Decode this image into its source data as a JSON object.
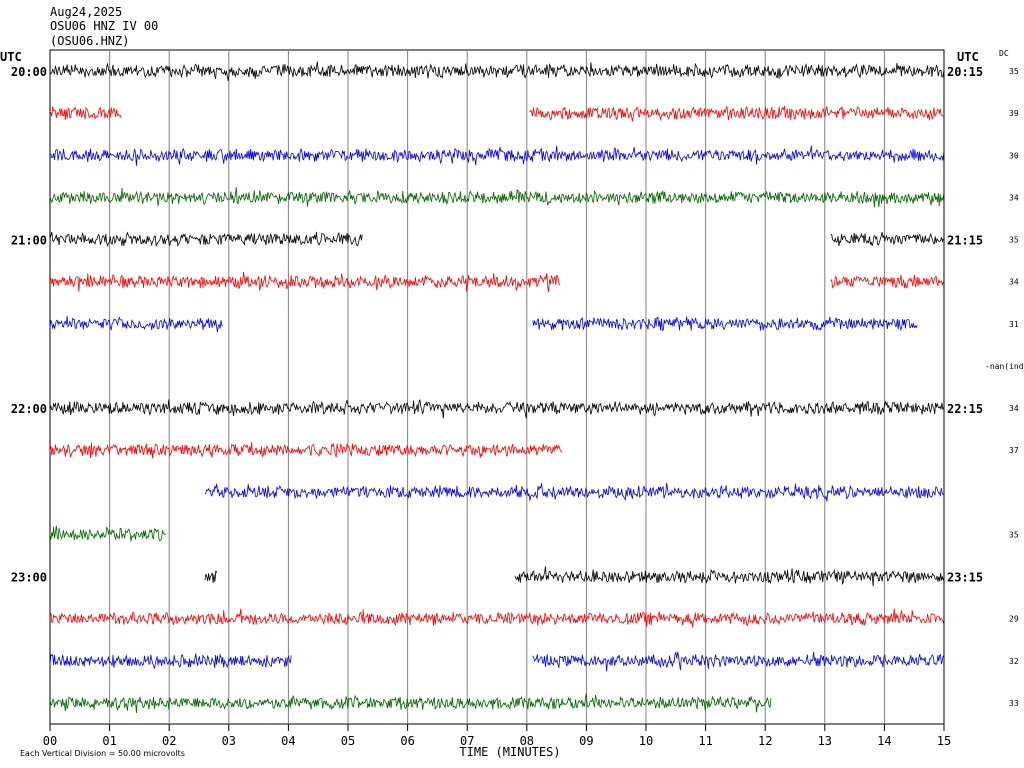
{
  "header": {
    "date": "Aug24,2025",
    "station": "OSU06 HNZ IV 00",
    "channel": "(OSU06.HNZ)"
  },
  "chart_data": {
    "type": "line",
    "xlabel": "TIME (MINUTES)",
    "x_ticks": [
      "00",
      "01",
      "02",
      "03",
      "04",
      "05",
      "06",
      "07",
      "08",
      "09",
      "10",
      "11",
      "12",
      "13",
      "14",
      "15"
    ],
    "xlim": [
      0,
      15
    ],
    "left_axis_label": "UTC",
    "right_axis_label": "UTC",
    "dc_label": "DC",
    "colors": [
      "#000000",
      "#ff0000",
      "#0000ff",
      "#006400"
    ],
    "hour_labels": [
      {
        "row": 0,
        "left": "20:00",
        "right": "20:15"
      },
      {
        "row": 4,
        "left": "21:00",
        "right": "21:15"
      },
      {
        "row": 8,
        "left": "22:00",
        "right": "22:15"
      },
      {
        "row": 12,
        "left": "23:00",
        "right": "23:15"
      }
    ],
    "traces": [
      {
        "row": 0,
        "color": "#000000",
        "dc": "35",
        "segments": [
          [
            0,
            15
          ]
        ]
      },
      {
        "row": 1,
        "color": "#ff0000",
        "dc": "39",
        "segments": [
          [
            0,
            1.2
          ],
          [
            8.05,
            15
          ]
        ]
      },
      {
        "row": 2,
        "color": "#0000ff",
        "dc": "30",
        "segments": [
          [
            0,
            15
          ]
        ]
      },
      {
        "row": 3,
        "color": "#006400",
        "dc": "34",
        "segments": [
          [
            0,
            15
          ]
        ]
      },
      {
        "row": 4,
        "color": "#000000",
        "dc": "35",
        "segments": [
          [
            0,
            5.25
          ],
          [
            13.1,
            15
          ]
        ]
      },
      {
        "row": 5,
        "color": "#ff0000",
        "dc": "34",
        "segments": [
          [
            0,
            8.55
          ],
          [
            13.1,
            15
          ]
        ]
      },
      {
        "row": 6,
        "color": "#0000ff",
        "dc": "31",
        "segments": [
          [
            0,
            2.9
          ],
          [
            8.1,
            14.55
          ]
        ]
      },
      {
        "row": 7,
        "color": "#006400",
        "dc": "-nan(ind",
        "segments": []
      },
      {
        "row": 8,
        "color": "#000000",
        "dc": "34",
        "segments": [
          [
            0,
            15
          ]
        ]
      },
      {
        "row": 9,
        "color": "#ff0000",
        "dc": "37",
        "segments": [
          [
            0,
            8.6
          ]
        ]
      },
      {
        "row": 10,
        "color": "#0000ff",
        "dc": "",
        "segments": [
          [
            2.6,
            15
          ]
        ]
      },
      {
        "row": 11,
        "color": "#006400",
        "dc": "35",
        "segments": [
          [
            0,
            1.95
          ]
        ]
      },
      {
        "row": 12,
        "color": "#000000",
        "dc": "",
        "segments": [
          [
            2.6,
            2.8
          ],
          [
            7.8,
            15
          ]
        ]
      },
      {
        "row": 13,
        "color": "#ff0000",
        "dc": "29",
        "segments": [
          [
            0,
            15
          ]
        ]
      },
      {
        "row": 14,
        "color": "#0000ff",
        "dc": "32",
        "segments": [
          [
            0,
            4.05
          ],
          [
            8.1,
            15
          ]
        ]
      },
      {
        "row": 15,
        "color": "#006400",
        "dc": "33",
        "segments": [
          [
            0,
            12.1
          ]
        ]
      }
    ]
  },
  "footer": {
    "scale_text": "Each Vertical Division =    50.00 microvolts"
  }
}
